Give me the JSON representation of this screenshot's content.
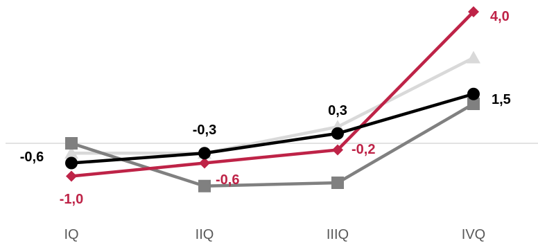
{
  "chart_data": {
    "type": "line",
    "categories": [
      "IQ",
      "IIQ",
      "IIIQ",
      "IVQ"
    ],
    "ylim": [
      -2.0,
      5.0
    ],
    "grid": false,
    "legend": "none",
    "series": [
      {
        "values": [
          -0.6,
          -0.3,
          0.3,
          1.5
        ],
        "color": "#000000",
        "marker": "circle",
        "labels": [
          "-0,6",
          "-0,3",
          "0,3",
          "1,5"
        ]
      },
      {
        "values": [
          -1.0,
          -0.6,
          -0.2,
          4.0
        ],
        "color": "#be2347",
        "marker": "diamond",
        "labels": [
          "-1,0",
          "-0,6",
          "-0,2",
          "4,0"
        ]
      },
      {
        "values": [
          0.0,
          -1.3,
          -1.2,
          1.2
        ],
        "color": "#808080",
        "marker": "square"
      },
      {
        "values": [
          -0.3,
          -0.3,
          0.5,
          2.6
        ],
        "color": "#d9d9d9",
        "marker": "triangle"
      }
    ]
  }
}
